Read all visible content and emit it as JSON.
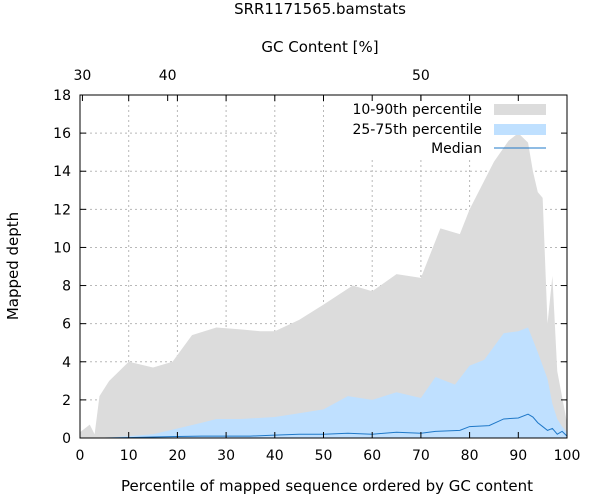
{
  "chart_data": {
    "type": "area",
    "title": "SRR1171565.bamstats",
    "xlabel": "Percentile of mapped sequence ordered by GC content",
    "ylabel": "Mapped depth",
    "x2label": "GC Content [%]",
    "xlim": [
      0,
      100
    ],
    "ylim": [
      0,
      18
    ],
    "xticks": [
      0,
      10,
      20,
      30,
      40,
      50,
      60,
      70,
      80,
      90,
      100
    ],
    "yticks": [
      0,
      2,
      4,
      6,
      8,
      10,
      12,
      14,
      16,
      18
    ],
    "x2ticks": [
      {
        "label": "30",
        "x": 0.5
      },
      {
        "label": "40",
        "x": 18
      },
      {
        "label": "50",
        "x": 70
      }
    ],
    "grid": true,
    "legend_position": "top-right",
    "colors": {
      "p10_90": "#dcdcdc",
      "p25_75": "#bfe0ff",
      "median": "#1f78c8"
    },
    "series": [
      {
        "name": "10-90th percentile",
        "x": [
          0,
          2,
          3,
          4,
          6,
          10,
          15,
          19,
          23,
          28,
          33,
          37,
          40,
          45,
          50,
          56,
          60,
          65,
          70,
          74,
          78,
          80,
          85,
          88,
          90,
          92,
          93,
          94,
          95,
          96,
          97,
          98,
          100
        ],
        "low": [
          0,
          0,
          0,
          0,
          0,
          0,
          0,
          0,
          0,
          0,
          0,
          0,
          0,
          0,
          0,
          0,
          0,
          0,
          0,
          0,
          0,
          0,
          0,
          0,
          0,
          0,
          0,
          0,
          0,
          0,
          0,
          0,
          0
        ],
        "high": [
          0.3,
          0.7,
          0.2,
          2.2,
          3.0,
          4.0,
          3.7,
          4.0,
          5.4,
          5.8,
          5.7,
          5.6,
          5.6,
          6.2,
          7.0,
          8.0,
          7.7,
          8.6,
          8.4,
          11.0,
          10.7,
          12.0,
          14.5,
          15.6,
          16.0,
          15.5,
          14.0,
          12.9,
          12.6,
          6.0,
          8.5,
          3.5,
          0.8
        ]
      },
      {
        "name": "25-75th percentile",
        "x": [
          0,
          5,
          10,
          15,
          20,
          25,
          28,
          33,
          40,
          45,
          50,
          55,
          60,
          65,
          70,
          73,
          77,
          80,
          83,
          87,
          90,
          92,
          94,
          96,
          97,
          98,
          99,
          100
        ],
        "low": [
          0,
          0,
          0,
          0,
          0,
          0,
          0,
          0,
          0,
          0,
          0,
          0,
          0,
          0,
          0,
          0,
          0,
          0,
          0,
          0,
          0,
          0,
          0,
          0,
          0,
          0,
          0,
          0
        ],
        "high": [
          0,
          0,
          0.1,
          0.2,
          0.5,
          0.8,
          1.0,
          1.0,
          1.1,
          1.3,
          1.5,
          2.2,
          2.0,
          2.4,
          2.1,
          3.2,
          2.8,
          3.8,
          4.1,
          5.5,
          5.6,
          5.8,
          4.5,
          3.1,
          1.8,
          1.0,
          0.6,
          0.3
        ]
      },
      {
        "name": "Median",
        "x": [
          0,
          5,
          10,
          15,
          20,
          25,
          30,
          35,
          40,
          45,
          50,
          55,
          60,
          65,
          70,
          73,
          78,
          80,
          84,
          87,
          90,
          92,
          93,
          94,
          95,
          96,
          97,
          98,
          99,
          100
        ],
        "y": [
          0,
          0,
          0.02,
          0.05,
          0.08,
          0.1,
          0.1,
          0.1,
          0.15,
          0.2,
          0.2,
          0.25,
          0.2,
          0.3,
          0.25,
          0.35,
          0.4,
          0.6,
          0.65,
          1.0,
          1.05,
          1.25,
          1.1,
          0.8,
          0.6,
          0.4,
          0.5,
          0.2,
          0.35,
          0.1
        ]
      }
    ]
  }
}
